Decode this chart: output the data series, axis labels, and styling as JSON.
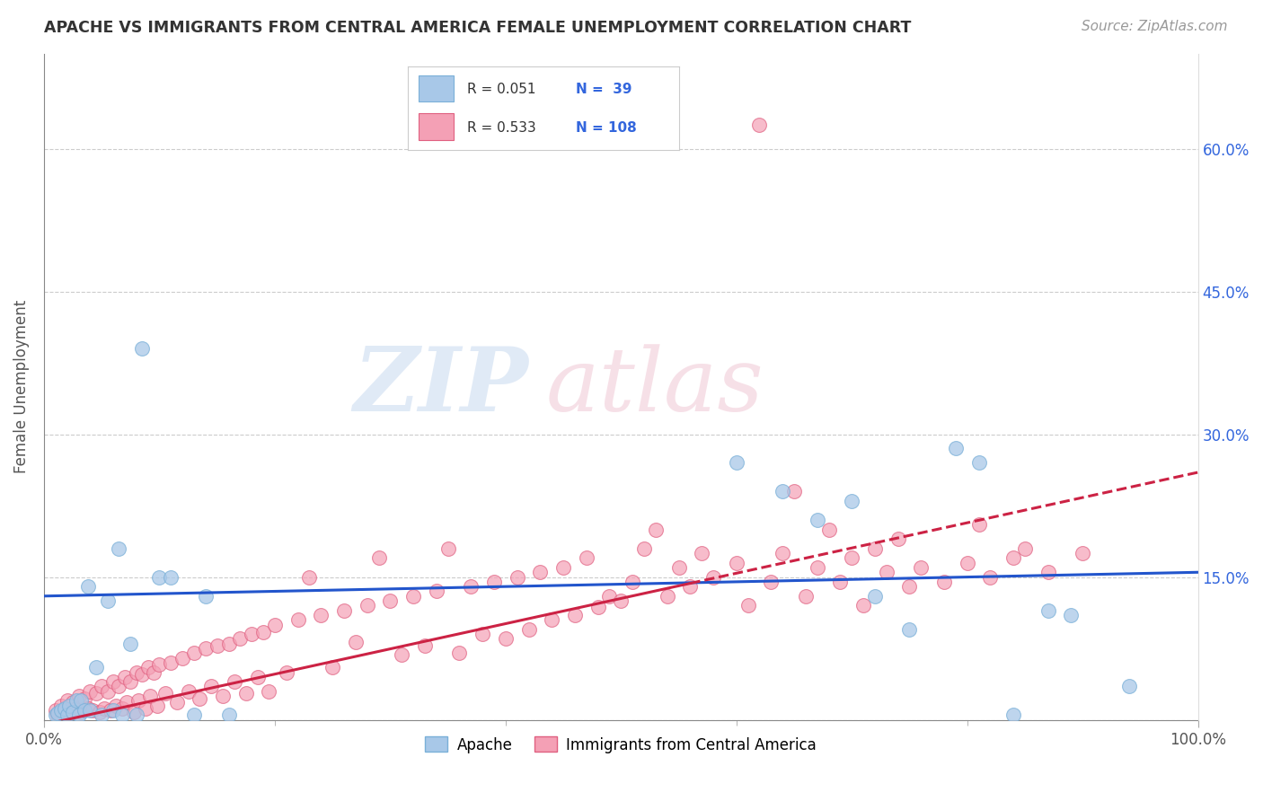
{
  "title": "APACHE VS IMMIGRANTS FROM CENTRAL AMERICA FEMALE UNEMPLOYMENT CORRELATION CHART",
  "source": "Source: ZipAtlas.com",
  "ylabel": "Female Unemployment",
  "xlim": [
    0.0,
    1.0
  ],
  "ylim": [
    0.0,
    0.7
  ],
  "yticks": [
    0.0,
    0.15,
    0.3,
    0.45,
    0.6
  ],
  "right_ytick_labels": [
    "15.0%",
    "30.0%",
    "45.0%",
    "60.0%"
  ],
  "xticks": [
    0.0,
    1.0
  ],
  "xtick_labels": [
    "0.0%",
    "100.0%"
  ],
  "apache_color": "#a8c8e8",
  "apache_edge_color": "#7ab0d8",
  "central_america_color": "#f4a0b5",
  "central_america_edge_color": "#e06080",
  "apache_line_color": "#2255cc",
  "central_america_line_color": "#cc2244",
  "right_axis_label_color": "#3366dd",
  "legend_text_color": "#3366dd",
  "legend_rn_color": "#000000",
  "watermark_color": "#dde8f5",
  "watermark_color2": "#f5dde5",
  "background_color": "#ffffff",
  "grid_color": "#cccccc",
  "apache_line_start": 0.13,
  "apache_line_end": 0.155,
  "ca_line_intercept": -0.005,
  "ca_line_slope": 0.265,
  "apache_points": [
    [
      0.01,
      0.005
    ],
    [
      0.012,
      0.007
    ],
    [
      0.015,
      0.01
    ],
    [
      0.018,
      0.012
    ],
    [
      0.02,
      0.005
    ],
    [
      0.022,
      0.015
    ],
    [
      0.025,
      0.008
    ],
    [
      0.028,
      0.02
    ],
    [
      0.03,
      0.005
    ],
    [
      0.032,
      0.02
    ],
    [
      0.035,
      0.01
    ],
    [
      0.038,
      0.14
    ],
    [
      0.04,
      0.01
    ],
    [
      0.045,
      0.055
    ],
    [
      0.05,
      0.005
    ],
    [
      0.055,
      0.125
    ],
    [
      0.06,
      0.01
    ],
    [
      0.065,
      0.18
    ],
    [
      0.068,
      0.005
    ],
    [
      0.075,
      0.08
    ],
    [
      0.08,
      0.005
    ],
    [
      0.085,
      0.39
    ],
    [
      0.1,
      0.15
    ],
    [
      0.11,
      0.15
    ],
    [
      0.13,
      0.005
    ],
    [
      0.14,
      0.13
    ],
    [
      0.16,
      0.005
    ],
    [
      0.6,
      0.27
    ],
    [
      0.64,
      0.24
    ],
    [
      0.67,
      0.21
    ],
    [
      0.7,
      0.23
    ],
    [
      0.72,
      0.13
    ],
    [
      0.75,
      0.095
    ],
    [
      0.79,
      0.285
    ],
    [
      0.81,
      0.27
    ],
    [
      0.84,
      0.005
    ],
    [
      0.87,
      0.115
    ],
    [
      0.89,
      0.11
    ],
    [
      0.94,
      0.035
    ]
  ],
  "ca_points": [
    [
      0.01,
      0.01
    ],
    [
      0.012,
      0.005
    ],
    [
      0.015,
      0.015
    ],
    [
      0.018,
      0.01
    ],
    [
      0.02,
      0.02
    ],
    [
      0.022,
      0.005
    ],
    [
      0.025,
      0.018
    ],
    [
      0.028,
      0.012
    ],
    [
      0.03,
      0.025
    ],
    [
      0.032,
      0.008
    ],
    [
      0.035,
      0.022
    ],
    [
      0.038,
      0.012
    ],
    [
      0.04,
      0.03
    ],
    [
      0.042,
      0.01
    ],
    [
      0.045,
      0.028
    ],
    [
      0.048,
      0.008
    ],
    [
      0.05,
      0.035
    ],
    [
      0.052,
      0.012
    ],
    [
      0.055,
      0.03
    ],
    [
      0.058,
      0.01
    ],
    [
      0.06,
      0.04
    ],
    [
      0.062,
      0.015
    ],
    [
      0.065,
      0.035
    ],
    [
      0.068,
      0.012
    ],
    [
      0.07,
      0.045
    ],
    [
      0.072,
      0.018
    ],
    [
      0.075,
      0.04
    ],
    [
      0.078,
      0.008
    ],
    [
      0.08,
      0.05
    ],
    [
      0.082,
      0.02
    ],
    [
      0.085,
      0.048
    ],
    [
      0.088,
      0.012
    ],
    [
      0.09,
      0.055
    ],
    [
      0.092,
      0.025
    ],
    [
      0.095,
      0.05
    ],
    [
      0.098,
      0.015
    ],
    [
      0.1,
      0.058
    ],
    [
      0.105,
      0.028
    ],
    [
      0.11,
      0.06
    ],
    [
      0.115,
      0.018
    ],
    [
      0.12,
      0.065
    ],
    [
      0.125,
      0.03
    ],
    [
      0.13,
      0.07
    ],
    [
      0.135,
      0.022
    ],
    [
      0.14,
      0.075
    ],
    [
      0.145,
      0.035
    ],
    [
      0.15,
      0.078
    ],
    [
      0.155,
      0.025
    ],
    [
      0.16,
      0.08
    ],
    [
      0.165,
      0.04
    ],
    [
      0.17,
      0.085
    ],
    [
      0.175,
      0.028
    ],
    [
      0.18,
      0.09
    ],
    [
      0.185,
      0.045
    ],
    [
      0.19,
      0.092
    ],
    [
      0.195,
      0.03
    ],
    [
      0.2,
      0.1
    ],
    [
      0.21,
      0.05
    ],
    [
      0.22,
      0.105
    ],
    [
      0.23,
      0.15
    ],
    [
      0.24,
      0.11
    ],
    [
      0.25,
      0.055
    ],
    [
      0.26,
      0.115
    ],
    [
      0.27,
      0.082
    ],
    [
      0.28,
      0.12
    ],
    [
      0.29,
      0.17
    ],
    [
      0.3,
      0.125
    ],
    [
      0.31,
      0.068
    ],
    [
      0.32,
      0.13
    ],
    [
      0.33,
      0.078
    ],
    [
      0.34,
      0.135
    ],
    [
      0.35,
      0.18
    ],
    [
      0.36,
      0.07
    ],
    [
      0.37,
      0.14
    ],
    [
      0.38,
      0.09
    ],
    [
      0.39,
      0.145
    ],
    [
      0.4,
      0.085
    ],
    [
      0.41,
      0.15
    ],
    [
      0.42,
      0.095
    ],
    [
      0.43,
      0.155
    ],
    [
      0.44,
      0.105
    ],
    [
      0.45,
      0.16
    ],
    [
      0.46,
      0.11
    ],
    [
      0.47,
      0.17
    ],
    [
      0.48,
      0.118
    ],
    [
      0.49,
      0.13
    ],
    [
      0.5,
      0.125
    ],
    [
      0.51,
      0.145
    ],
    [
      0.52,
      0.18
    ],
    [
      0.53,
      0.2
    ],
    [
      0.54,
      0.13
    ],
    [
      0.55,
      0.16
    ],
    [
      0.56,
      0.14
    ],
    [
      0.57,
      0.175
    ],
    [
      0.58,
      0.15
    ],
    [
      0.6,
      0.165
    ],
    [
      0.61,
      0.12
    ],
    [
      0.62,
      0.625
    ],
    [
      0.63,
      0.145
    ],
    [
      0.64,
      0.175
    ],
    [
      0.65,
      0.24
    ],
    [
      0.66,
      0.13
    ],
    [
      0.67,
      0.16
    ],
    [
      0.68,
      0.2
    ],
    [
      0.69,
      0.145
    ],
    [
      0.7,
      0.17
    ],
    [
      0.71,
      0.12
    ],
    [
      0.72,
      0.18
    ],
    [
      0.73,
      0.155
    ],
    [
      0.74,
      0.19
    ],
    [
      0.75,
      0.14
    ],
    [
      0.76,
      0.16
    ],
    [
      0.78,
      0.145
    ],
    [
      0.8,
      0.165
    ],
    [
      0.81,
      0.205
    ],
    [
      0.82,
      0.15
    ],
    [
      0.84,
      0.17
    ],
    [
      0.85,
      0.18
    ],
    [
      0.87,
      0.155
    ],
    [
      0.9,
      0.175
    ]
  ]
}
